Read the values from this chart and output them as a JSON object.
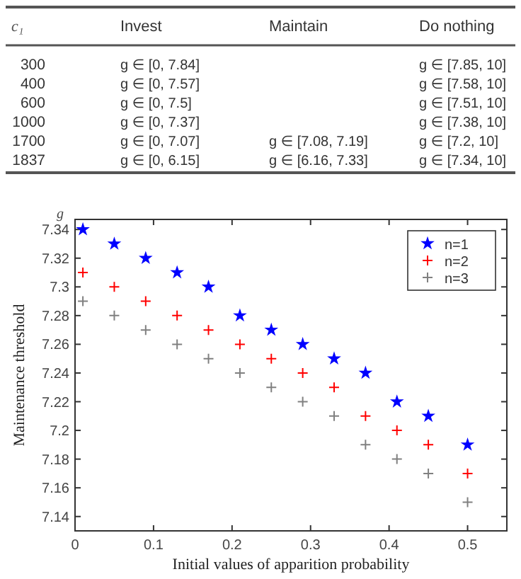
{
  "chart_data": [
    {
      "type": "other",
      "ylabel": "c₁",
      "categories": [
        "Invest",
        "Maintain",
        "Do nothing"
      ],
      "y_categories": [
        "300",
        "400",
        "600",
        "1000",
        "1700",
        "1837"
      ],
      "cell_labels": [
        [
          "g ∈ [0, 7.84]",
          null,
          "g ∈ [7.85, 10]"
        ],
        [
          "g ∈ [0, 7.57]",
          null,
          "g ∈ [7.58, 10]"
        ],
        [
          "g ∈ [0, 7.5]",
          null,
          "g ∈ [7.51, 10]"
        ],
        [
          "g ∈ [0, 7.37]",
          null,
          "g ∈ [7.38, 10]"
        ],
        [
          "g ∈ [0, 7.07]",
          "g ∈ [7.08, 7.19]",
          "g ∈ [7.2, 10]"
        ],
        [
          "g ∈ [0, 6.15]",
          "g ∈ [6.16, 7.33]",
          "g ∈ [7.34, 10]"
        ]
      ]
    },
    {
      "type": "scatter",
      "xlabel": "Initial values of apparition probability",
      "ylabel": "Maintenance threshold",
      "annotations": [
        "g"
      ],
      "x": [
        0.01,
        0.05,
        0.09,
        0.13,
        0.17,
        0.21,
        0.25,
        0.29,
        0.33,
        0.37,
        0.41,
        0.45,
        0.5
      ],
      "series": [
        {
          "name": "n=1",
          "color": "#0000ff",
          "marker": "star",
          "values": [
            7.34,
            7.33,
            7.32,
            7.31,
            7.3,
            7.28,
            7.27,
            7.26,
            7.25,
            7.24,
            7.22,
            7.21,
            7.19
          ]
        },
        {
          "name": "n=2",
          "color": "#ff0000",
          "marker": "cross",
          "values": [
            7.31,
            7.3,
            7.29,
            7.28,
            7.27,
            7.26,
            7.25,
            7.24,
            7.23,
            7.21,
            7.2,
            7.19,
            7.17
          ]
        },
        {
          "name": "n=3",
          "color": "#808080",
          "marker": "cross",
          "values": [
            7.29,
            7.28,
            7.27,
            7.26,
            7.25,
            7.24,
            7.23,
            7.22,
            7.21,
            7.19,
            7.18,
            7.17,
            7.15
          ]
        }
      ],
      "xlim": [
        0,
        0.55
      ],
      "xticks": [
        0,
        0.1,
        0.2,
        0.3,
        0.4,
        0.5
      ],
      "ylim": [
        7.13,
        7.347
      ],
      "yticks": [
        7.14,
        7.16,
        7.18,
        7.2,
        7.22,
        7.24,
        7.26,
        7.28,
        7.3,
        7.32,
        7.34
      ],
      "legend": "top right",
      "grid": false
    }
  ]
}
